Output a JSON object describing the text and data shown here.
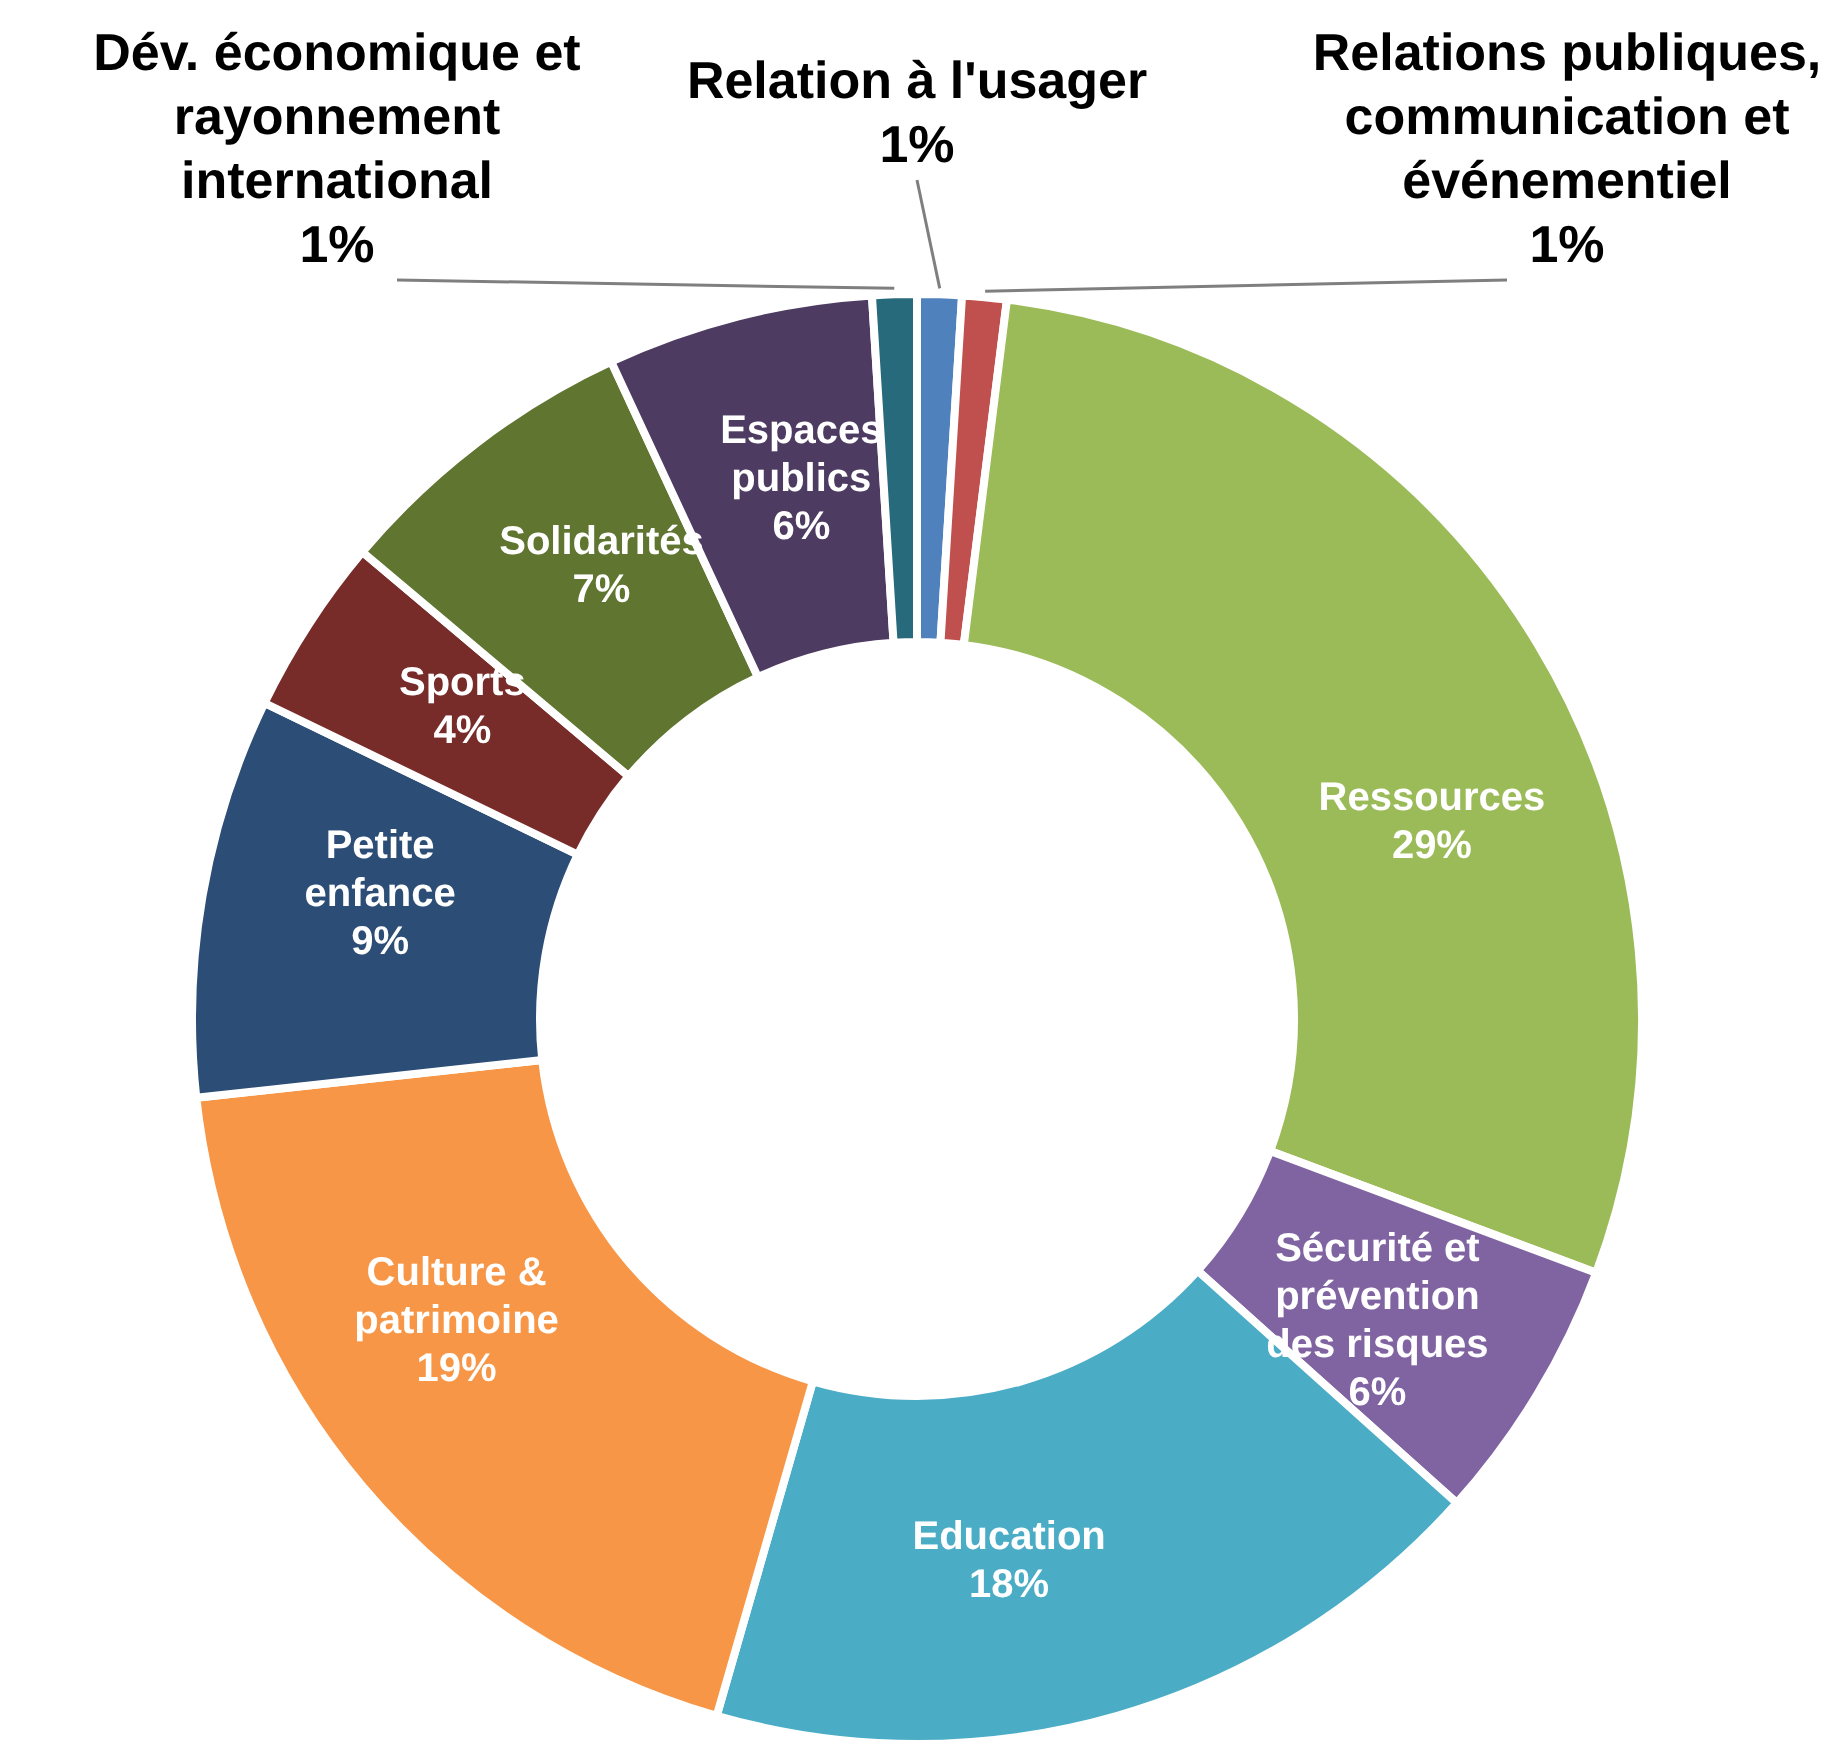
{
  "chart_data": {
    "type": "donut",
    "categories": [
      "Relation à l'usager",
      "Relations publiques, communication et événementiel",
      "Ressources",
      "Sécurité et prévention des risques",
      "Education",
      "Culture & patrimoine",
      "Petite enfance",
      "Sports",
      "Solidarités",
      "Espaces publics",
      "Dév. économique et rayonnement international"
    ],
    "values": [
      1,
      1,
      29,
      6,
      18,
      19,
      9,
      4,
      7,
      6,
      1
    ],
    "value_labels": [
      "1%",
      "1%",
      "29%",
      "6%",
      "18%",
      "19%",
      "9%",
      "4%",
      "7%",
      "6%",
      "1%"
    ],
    "colors": [
      "#4f81bd",
      "#c0504d",
      "#9bbb59",
      "#8064a2",
      "#4bacc6",
      "#f79646",
      "#2c4d75",
      "#772c2a",
      "#5f7530",
      "#4d3b62",
      "#276a7c"
    ],
    "legend": false
  }
}
